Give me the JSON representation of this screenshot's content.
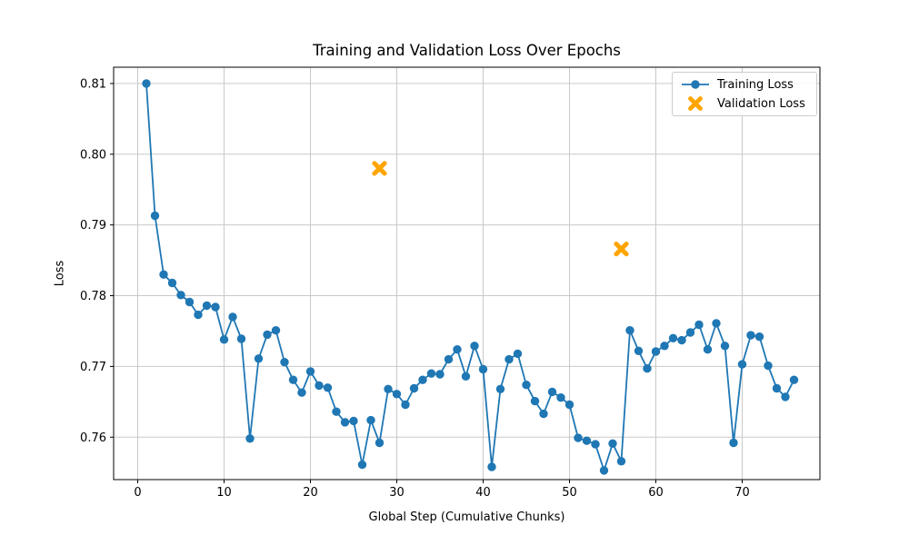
{
  "chart_data": {
    "type": "line",
    "title": "Training and Validation Loss Over Epochs",
    "xlabel": "Global Step (Cumulative Chunks)",
    "ylabel": "Loss",
    "xlim": [
      -2.79,
      79.0
    ],
    "ylim": [
      0.754,
      0.8123
    ],
    "x_ticks": [
      0,
      10,
      20,
      30,
      40,
      50,
      60,
      70
    ],
    "x_tick_labels": [
      "0",
      "10",
      "20",
      "30",
      "40",
      "50",
      "60",
      "70"
    ],
    "y_ticks": [
      0.76,
      0.77,
      0.78,
      0.79,
      0.8,
      0.81
    ],
    "y_tick_labels": [
      "0.76",
      "0.77",
      "0.78",
      "0.79",
      "0.80",
      "0.81"
    ],
    "grid": true,
    "grid_color": "#c9c9c9",
    "legend_position": "upper right",
    "series": [
      {
        "name": "Training Loss",
        "type": "line",
        "color": "#1f77b4",
        "marker": "circle",
        "x_start": 1,
        "x_step": 1,
        "values": [
          0.81,
          0.7913,
          0.783,
          0.7818,
          0.7801,
          0.7791,
          0.7773,
          0.7786,
          0.7784,
          0.7738,
          0.777,
          0.7739,
          0.7598,
          0.7711,
          0.7745,
          0.7751,
          0.7706,
          0.7681,
          0.7663,
          0.7693,
          0.7673,
          0.767,
          0.7636,
          0.7621,
          0.7623,
          0.7561,
          0.7624,
          0.7592,
          0.7668,
          0.7661,
          0.7646,
          0.7669,
          0.7681,
          0.769,
          0.7689,
          0.771,
          0.7724,
          0.7686,
          0.7729,
          0.7696,
          0.7558,
          0.7668,
          0.771,
          0.7718,
          0.7674,
          0.7651,
          0.7633,
          0.7664,
          0.7656,
          0.7646,
          0.7599,
          0.7595,
          0.759,
          0.7553,
          0.7591,
          0.7566,
          0.7751,
          0.7722,
          0.7697,
          0.7721,
          0.7729,
          0.774,
          0.7737,
          0.7748,
          0.7759,
          0.7724,
          0.7761,
          0.7729,
          0.7592,
          0.7703,
          0.7744,
          0.7742,
          0.7701,
          0.7669,
          0.7657,
          0.7681
        ]
      },
      {
        "name": "Validation Loss",
        "type": "scatter",
        "color": "#ffa500",
        "marker": "X",
        "points": [
          [
            28,
            0.798
          ],
          [
            56,
            0.7866
          ]
        ]
      }
    ]
  }
}
